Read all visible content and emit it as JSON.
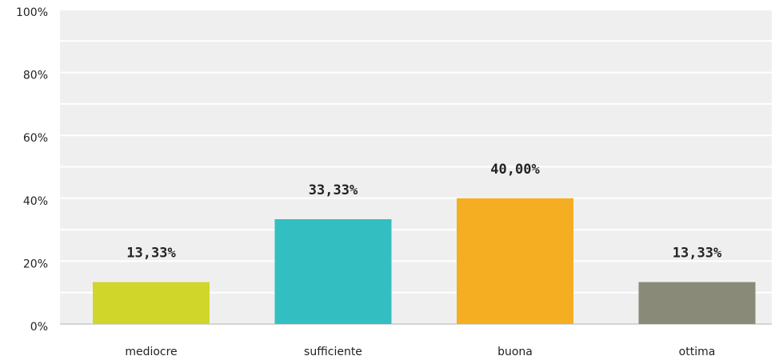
{
  "chart_data": {
    "type": "bar",
    "categories": [
      "mediocre",
      "sufficiente",
      "buona",
      "ottima"
    ],
    "values": [
      13.33,
      33.33,
      40,
      13.33
    ],
    "value_labels": [
      "13,33%",
      "33,33%",
      "40,00%",
      "13,33%"
    ],
    "colors": [
      "#d0d62a",
      "#33bfc1",
      "#f5ad22",
      "#8a8a78"
    ],
    "ylim": [
      0,
      100
    ],
    "yticks": [
      {
        "value": 0,
        "label": "0%"
      },
      {
        "value": 20,
        "label": "20%"
      },
      {
        "value": 40,
        "label": "40%"
      },
      {
        "value": 60,
        "label": "60%"
      },
      {
        "value": 80,
        "label": "80%"
      },
      {
        "value": 100,
        "label": "100%"
      }
    ],
    "grid": true
  }
}
